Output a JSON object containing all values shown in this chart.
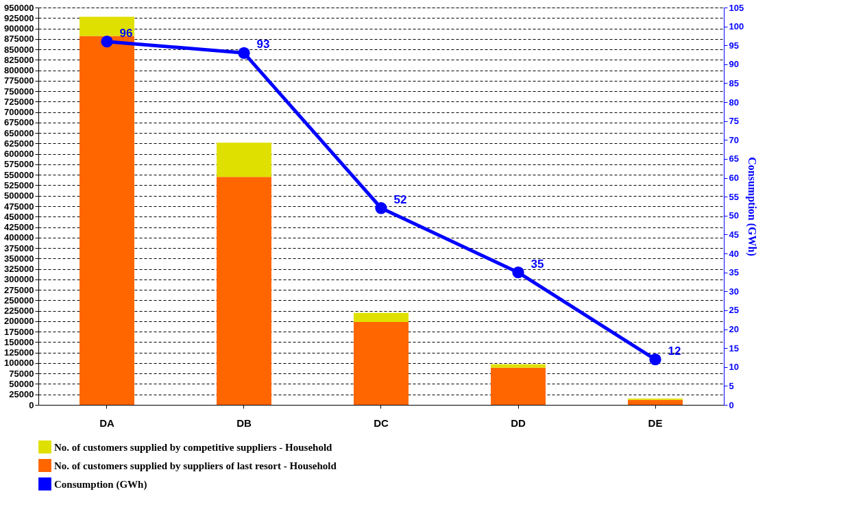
{
  "chart_data": {
    "type": "bar",
    "stacked": true,
    "categories": [
      "DA",
      "DB",
      "DC",
      "DD",
      "DE"
    ],
    "series": [
      {
        "name": "No. of customers supplied by suppliers of last resort - Household",
        "color": "#ff6600",
        "values": [
          882000,
          545000,
          198000,
          89000,
          12000
        ]
      },
      {
        "name": "No. of customers supplied by competitive suppliers - Household",
        "color": "#e0e000",
        "values": [
          46000,
          82000,
          22000,
          8000,
          3000
        ]
      },
      {
        "name": "Consumption (GWh)",
        "type": "line",
        "axis": "y2",
        "color": "#0000ff",
        "marker": "circle",
        "values": [
          96,
          93,
          52,
          35,
          12
        ],
        "value_labels": [
          "96",
          "93",
          "52",
          "35",
          "12"
        ]
      }
    ],
    "ylim": [
      0,
      950000
    ],
    "yticks": [
      0,
      25000,
      50000,
      75000,
      100000,
      125000,
      150000,
      175000,
      200000,
      225000,
      250000,
      275000,
      300000,
      325000,
      350000,
      375000,
      400000,
      425000,
      450000,
      475000,
      500000,
      525000,
      550000,
      575000,
      600000,
      625000,
      650000,
      675000,
      700000,
      725000,
      750000,
      775000,
      800000,
      825000,
      850000,
      875000,
      900000,
      925000,
      950000
    ],
    "y2lim": [
      0,
      105
    ],
    "y2ticks": [
      0,
      5,
      10,
      15,
      20,
      25,
      30,
      35,
      40,
      45,
      50,
      55,
      60,
      65,
      70,
      75,
      80,
      85,
      90,
      95,
      100,
      105
    ],
    "y2label": "Consumption  (GWh)",
    "grid": "y",
    "legend": "bottom"
  }
}
